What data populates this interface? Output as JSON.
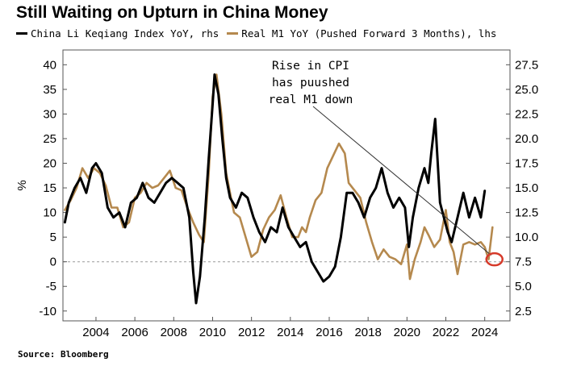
{
  "title": "Still Waiting on Upturn in China Money",
  "source": "Source: Bloomberg",
  "colors": {
    "li_keqiang": "#000000",
    "real_m1": "#b5894e",
    "highlight": "#d63a2a",
    "zero_line": "#9a9a9a"
  },
  "chart_data": {
    "type": "line",
    "title": "Still Waiting on Upturn in China Money",
    "ylabel_left": "%",
    "ylabel_right": "",
    "xlim": [
      2002.3,
      2025.3
    ],
    "ylim_left": [
      -12,
      43
    ],
    "ylim_right": [
      1.5,
      29
    ],
    "x_ticks": [
      "2004",
      "2006",
      "2008",
      "2010",
      "2012",
      "2014",
      "2016",
      "2018",
      "2020",
      "2022",
      "2024"
    ],
    "y_ticks_left": [
      "40",
      "35",
      "30",
      "25",
      "20",
      "15",
      "10",
      "5",
      "0",
      "-5",
      "-10"
    ],
    "y_ticks_right": [
      "27.5",
      "25.0",
      "22.5",
      "20.0",
      "17.5",
      "15.0",
      "12.5",
      "10.0",
      "7.5",
      "5.0",
      "2.5"
    ],
    "grid": false,
    "legend_position": "top",
    "annotation": [
      "Rise in CPI",
      "has puushed",
      "real M1 down"
    ],
    "series": [
      {
        "name": "China Li Keqiang Index YoY, rhs",
        "axis": "right",
        "x": [
          2002.4,
          2002.6,
          2002.9,
          2003.2,
          2003.5,
          2003.8,
          2004.0,
          2004.3,
          2004.6,
          2004.9,
          2005.2,
          2005.5,
          2005.8,
          2006.1,
          2006.4,
          2006.7,
          2007.0,
          2007.3,
          2007.6,
          2007.9,
          2008.2,
          2008.5,
          2008.8,
          2009.0,
          2009.15,
          2009.35,
          2009.6,
          2009.8,
          2010.0,
          2010.1,
          2010.3,
          2010.5,
          2010.7,
          2010.9,
          2011.2,
          2011.5,
          2011.8,
          2012.1,
          2012.4,
          2012.7,
          2013.0,
          2013.3,
          2013.6,
          2013.9,
          2014.2,
          2014.5,
          2014.8,
          2015.1,
          2015.4,
          2015.7,
          2016.0,
          2016.3,
          2016.6,
          2016.9,
          2017.2,
          2017.5,
          2017.8,
          2018.1,
          2018.4,
          2018.7,
          2019.0,
          2019.3,
          2019.6,
          2019.9,
          2020.1,
          2020.3,
          2020.6,
          2020.9,
          2021.1,
          2021.25,
          2021.45,
          2021.7,
          2021.9,
          2022.1,
          2022.3,
          2022.6,
          2022.9,
          2023.2,
          2023.5,
          2023.8,
          2024.0
        ],
        "values": [
          11.5,
          13.5,
          15.0,
          16.0,
          14.5,
          17.0,
          17.5,
          16.5,
          13.0,
          12.0,
          12.5,
          11.0,
          13.5,
          14.0,
          15.5,
          14.0,
          13.5,
          14.5,
          15.5,
          16.0,
          15.5,
          15.0,
          12.0,
          6.5,
          3.3,
          6.0,
          12.0,
          18.0,
          23.5,
          26.5,
          24.5,
          20.0,
          16.0,
          14.0,
          13.0,
          14.5,
          14.0,
          12.0,
          10.5,
          9.5,
          11.0,
          10.5,
          13.0,
          11.0,
          10.0,
          9.0,
          9.5,
          7.5,
          6.5,
          5.5,
          6.0,
          7.0,
          10.0,
          14.5,
          14.5,
          13.5,
          12.0,
          14.0,
          15.0,
          17.0,
          14.5,
          13.0,
          14.0,
          13.0,
          9.0,
          12.0,
          15.0,
          17.0,
          15.5,
          18.5,
          22.0,
          13.5,
          12.0,
          10.5,
          9.5,
          12.0,
          14.5,
          12.0,
          14.0,
          12.0,
          14.7
        ]
      },
      {
        "name": "Real M1 YoY (Pushed Forward 3 Months), lhs",
        "axis": "left",
        "x": [
          2002.4,
          2002.7,
          2003.0,
          2003.3,
          2003.6,
          2003.9,
          2004.2,
          2004.5,
          2004.8,
          2005.1,
          2005.4,
          2005.7,
          2006.0,
          2006.3,
          2006.6,
          2006.9,
          2007.2,
          2007.5,
          2007.8,
          2008.1,
          2008.4,
          2008.7,
          2009.0,
          2009.3,
          2009.55,
          2009.8,
          2010.0,
          2010.2,
          2010.45,
          2010.7,
          2010.9,
          2011.1,
          2011.4,
          2011.7,
          2012.0,
          2012.3,
          2012.6,
          2012.9,
          2013.2,
          2013.5,
          2013.8,
          2014.1,
          2014.4,
          2014.6,
          2014.8,
          2015.0,
          2015.3,
          2015.6,
          2015.9,
          2016.2,
          2016.5,
          2016.8,
          2017.0,
          2017.3,
          2017.6,
          2017.9,
          2018.2,
          2018.5,
          2018.8,
          2019.1,
          2019.4,
          2019.7,
          2020.0,
          2020.15,
          2020.4,
          2020.7,
          2020.9,
          2021.1,
          2021.4,
          2021.7,
          2022.0,
          2022.2,
          2022.4,
          2022.6,
          2022.9,
          2023.2,
          2023.5,
          2023.8,
          2024.0,
          2024.2,
          2024.4
        ],
        "values": [
          10.5,
          12.5,
          15.0,
          19.0,
          17.0,
          19.0,
          18.0,
          15.5,
          11.0,
          11.0,
          7.0,
          8.0,
          13.0,
          14.0,
          16.0,
          15.0,
          15.5,
          17.0,
          18.5,
          15.0,
          14.5,
          11.0,
          8.0,
          5.5,
          4.0,
          18.0,
          33.5,
          38.0,
          30.0,
          18.0,
          14.0,
          10.0,
          9.0,
          5.0,
          1.0,
          2.0,
          6.5,
          9.0,
          10.5,
          13.5,
          9.0,
          5.0,
          5.0,
          7.0,
          6.0,
          9.0,
          12.5,
          14.0,
          19.0,
          21.5,
          24.0,
          22.0,
          16.0,
          14.5,
          13.0,
          8.0,
          4.0,
          0.5,
          2.5,
          1.0,
          0.5,
          -0.5,
          3.5,
          -3.5,
          0.5,
          4.0,
          7.0,
          5.5,
          3.0,
          4.5,
          10.5,
          4.0,
          2.0,
          -2.5,
          3.5,
          4.0,
          3.5,
          4.0,
          3.0,
          0.5,
          7.0
        ]
      }
    ],
    "highlight_point": {
      "x": 2024.5,
      "y_left": 0.5
    }
  }
}
